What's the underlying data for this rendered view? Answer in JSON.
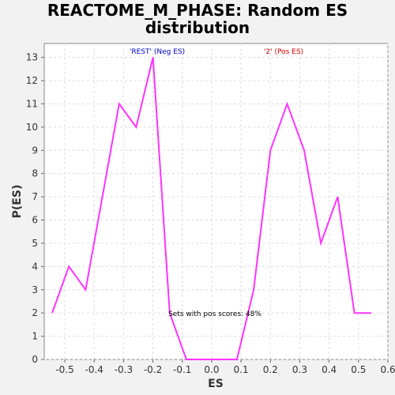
{
  "chart_data": {
    "type": "line",
    "title_lines": [
      "REACTOME_M_PHASE: Random ES",
      "distribution"
    ],
    "xlabel": "ES",
    "ylabel": "P(ES)",
    "xlim": [
      -0.57,
      0.6
    ],
    "ylim": [
      0,
      13.6
    ],
    "xticks": [
      "-0.5",
      "-0.4",
      "-0.3",
      "-0.2",
      "-0.1",
      "0.0",
      "0.1",
      "0.2",
      "0.3",
      "0.4",
      "0.5",
      "0.6"
    ],
    "yticks": [
      "0",
      "1",
      "2",
      "3",
      "4",
      "5",
      "6",
      "7",
      "8",
      "9",
      "10",
      "11",
      "12",
      "13"
    ],
    "grid": true,
    "series": [
      {
        "color": "#ff33ff",
        "points": [
          [
            -0.543,
            2
          ],
          [
            -0.486,
            4
          ],
          [
            -0.429,
            3
          ],
          [
            -0.372,
            7
          ],
          [
            -0.315,
            11
          ],
          [
            -0.257,
            10
          ],
          [
            -0.2,
            13
          ],
          [
            -0.143,
            2
          ],
          [
            -0.086,
            0
          ],
          [
            -0.029,
            0
          ],
          [
            0.029,
            0
          ],
          [
            0.086,
            0
          ],
          [
            0.143,
            3
          ],
          [
            0.2,
            9
          ],
          [
            0.257,
            11
          ],
          [
            0.315,
            9
          ],
          [
            0.372,
            5
          ],
          [
            0.429,
            7
          ],
          [
            0.486,
            2
          ],
          [
            0.543,
            2
          ]
        ]
      }
    ],
    "annotations": {
      "neg_label": "'REST' (Neg ES)",
      "pos_label": "'2' (Pos ES)",
      "center_text": "Sets with pos scores: 48%"
    },
    "colors": {
      "neg_label": "#0000cc",
      "pos_label": "#cc0000",
      "grid": "#dddddd",
      "plot_bg": "#ffffff"
    }
  }
}
